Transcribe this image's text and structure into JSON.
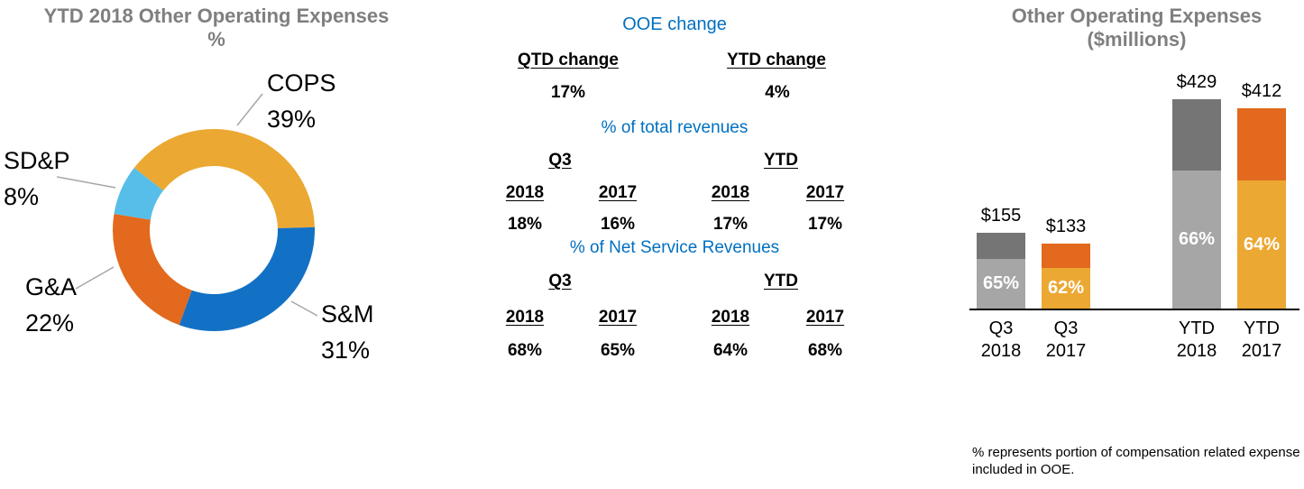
{
  "chart_data": [
    {
      "type": "pie",
      "subtype": "donut",
      "title": "YTD 2018 Other Operating Expenses %",
      "title_line1": "YTD 2018 Other Operating Expenses",
      "title_line2": "%",
      "start_angle_deg": -52,
      "legend_position": "callout-labels",
      "segments": [
        {
          "label": "COPS",
          "value": 39,
          "value_label": "39%",
          "color": "#EBA832"
        },
        {
          "label": "S&M",
          "value": 31,
          "value_label": "31%",
          "color": "#1271C4"
        },
        {
          "label": "G&A",
          "value": 22,
          "value_label": "22%",
          "color": "#E2691D"
        },
        {
          "label": "SD&P",
          "value": 8,
          "value_label": "8%",
          "color": "#56BEE8"
        }
      ]
    },
    {
      "type": "table",
      "title": "OOE change",
      "title_color": "#0070C0",
      "change_row": {
        "qtd_label": "QTD change",
        "qtd_value": "17%",
        "ytd_label": "YTD change",
        "ytd_value": "4%"
      },
      "sections": [
        {
          "title": "% of total revenues",
          "period_labels": [
            "Q3",
            "YTD"
          ],
          "year_headers": [
            "2018",
            "2017",
            "2018",
            "2017"
          ],
          "values": [
            "18%",
            "16%",
            "17%",
            "17%"
          ]
        },
        {
          "title": "% of Net Service Revenues",
          "period_labels": [
            "Q3",
            "YTD"
          ],
          "year_headers": [
            "2018",
            "2017",
            "2018",
            "2017"
          ],
          "values": [
            "68%",
            "65%",
            "64%",
            "68%"
          ]
        }
      ]
    },
    {
      "type": "bar",
      "subtype": "stacked",
      "title": "Other Operating Expenses ($millions)",
      "title_line1": "Other Operating Expenses",
      "title_line2": "($millions)",
      "ylim": [
        0,
        450
      ],
      "grid": false,
      "bars": [
        {
          "category": "Q3 2018",
          "cat_line1": "Q3",
          "cat_line2": "2018",
          "total": 155,
          "total_label": "$155",
          "comp_pct": 65,
          "comp_pct_label": "65%",
          "lower_color": "#A6A6A6",
          "upper_color": "#757575"
        },
        {
          "category": "Q3 2017",
          "cat_line1": "Q3",
          "cat_line2": "2017",
          "total": 133,
          "total_label": "$133",
          "comp_pct": 62,
          "comp_pct_label": "62%",
          "lower_color": "#EBA832",
          "upper_color": "#E2691D"
        },
        {
          "category": "YTD 2018",
          "cat_line1": "YTD",
          "cat_line2": "2018",
          "total": 429,
          "total_label": "$429",
          "comp_pct": 66,
          "comp_pct_label": "66%",
          "lower_color": "#A6A6A6",
          "upper_color": "#757575"
        },
        {
          "category": "YTD 2017",
          "cat_line1": "YTD",
          "cat_line2": "2017",
          "total": 412,
          "total_label": "$412",
          "comp_pct": 64,
          "comp_pct_label": "64%",
          "lower_color": "#EBA832",
          "upper_color": "#E2691D"
        }
      ],
      "footnote": "% represents portion of compensation related expense included in OOE."
    }
  ]
}
